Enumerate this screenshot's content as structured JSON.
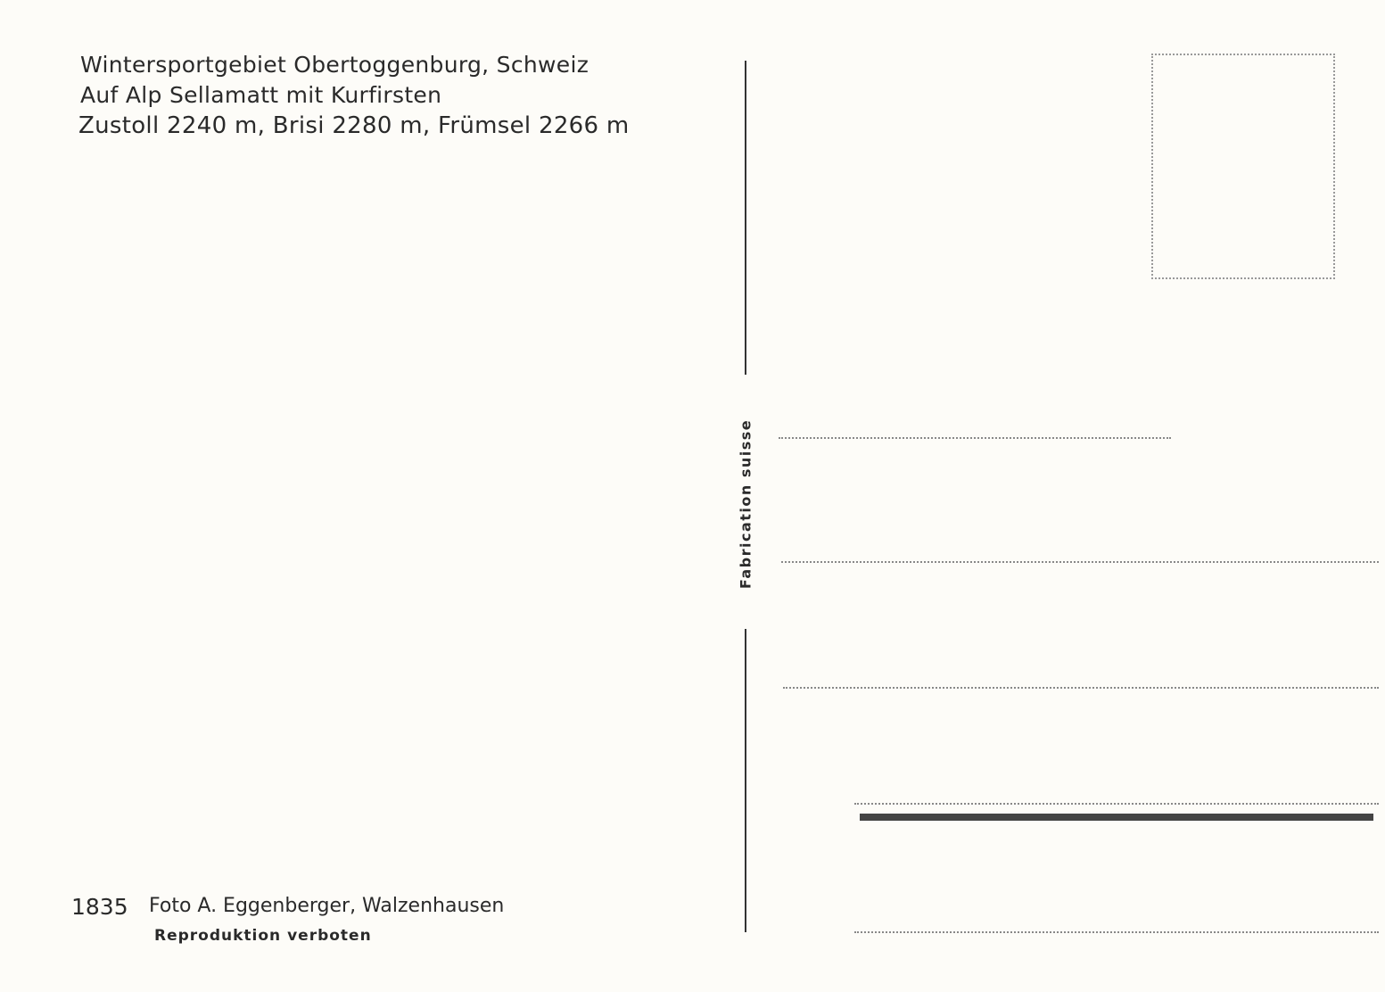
{
  "caption": {
    "lines": [
      "Wintersportgebiet Obertoggenburg, Schweiz",
      "Auf Alp Sellamatt mit Kurfirsten",
      "Zustoll 2240 m, Brisi 2280 m, Frümsel 2266 m"
    ]
  },
  "credit": {
    "number": "1835",
    "publisher": "Foto A. Eggenberger, Walzenhausen",
    "notice": "Reproduktion verboten"
  },
  "divider": {
    "label": "Fabrication suisse"
  }
}
